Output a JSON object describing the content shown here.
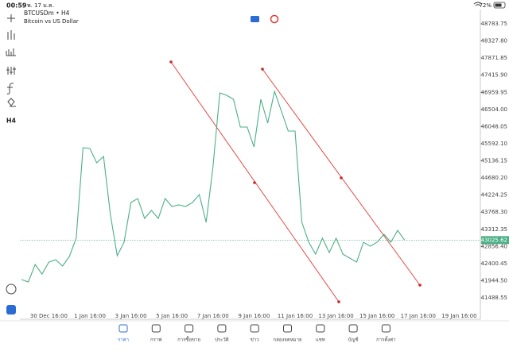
{
  "status_bar": {
    "time": "00:59",
    "date": "พ. 17 ม.ค.",
    "battery": "72%"
  },
  "toolbar": {
    "timeframe": "H4"
  },
  "chart_data": {
    "type": "line",
    "title": "BTCUSDm • H4",
    "subtitle": "Bitcoin vs US Dollar",
    "categories": [
      null,
      null,
      null,
      null,
      "30 Dec 16:00",
      null,
      null,
      null,
      null,
      null,
      "1 Jan 16:00",
      null,
      null,
      null,
      null,
      null,
      "3 Jan 16:00",
      null,
      null,
      null,
      null,
      null,
      "5 Jan 16:00",
      null,
      null,
      null,
      null,
      null,
      "7 Jan 16:00",
      null,
      null,
      null,
      null,
      null,
      "9 Jan 16:00",
      null,
      null,
      null,
      null,
      null,
      "11 Jan 16:00",
      null,
      null,
      null,
      null,
      null,
      "13 Jan 16:00",
      null,
      null,
      null,
      null,
      null,
      "15 Jan 16:00",
      null,
      null,
      null,
      null,
      null,
      "17 Jan 16:00",
      null,
      null,
      null,
      null,
      null,
      "19 Jan 16:00"
    ],
    "values": [
      41974,
      41911,
      42376,
      42122,
      42439,
      42503,
      42334,
      42588,
      43074,
      45485,
      45464,
      45083,
      45252,
      43708,
      42609,
      42968,
      44026,
      44131,
      43603,
      43814,
      43603,
      44131,
      43920,
      43962,
      43920,
      44026,
      44237,
      43497,
      44977,
      46944,
      46881,
      46775,
      46035,
      46035,
      45506,
      46775,
      46140,
      46986,
      46458,
      45929,
      45929,
      43497,
      42968,
      42651,
      43074,
      42693,
      43074,
      42651,
      42545,
      42439,
      42968,
      42863,
      42968,
      43180,
      42968,
      43286,
      43026,
      null,
      null,
      null,
      null,
      null,
      null,
      null,
      null
    ],
    "color": "#4caf86",
    "current_price": 43025.62,
    "ylim": [
      40960,
      49165
    ],
    "yticks": [
      48783.75,
      {
        "value": 48327.8,
        "label": "48327.80"
      },
      47871.85,
      {
        "value": 47415.9,
        "label": "47415.90"
      },
      46959.95,
      {
        "value": 46504,
        "label": "46504.00"
      },
      46048.05,
      {
        "value": 45592.1,
        "label": "45592.10"
      },
      45136.15,
      {
        "value": 44680.2,
        "label": "44680.20"
      },
      44224.25,
      {
        "value": 43768.3,
        "label": "43768.30"
      },
      43312.35,
      {
        "value": 42856.4,
        "label": "42856.40"
      },
      42400.45,
      {
        "value": 41944.5,
        "label": "41944.50"
      },
      41488.55
    ],
    "grid": false
  },
  "tab_bar": {
    "tabs": [
      "ราคา",
      "กราฟ",
      "การซื้อขาย",
      "ประวัติ",
      "ข่าว",
      "กล่องจดหมาย",
      "แชท",
      "บัญชี",
      "การตั้งค่า"
    ],
    "active": 0
  }
}
